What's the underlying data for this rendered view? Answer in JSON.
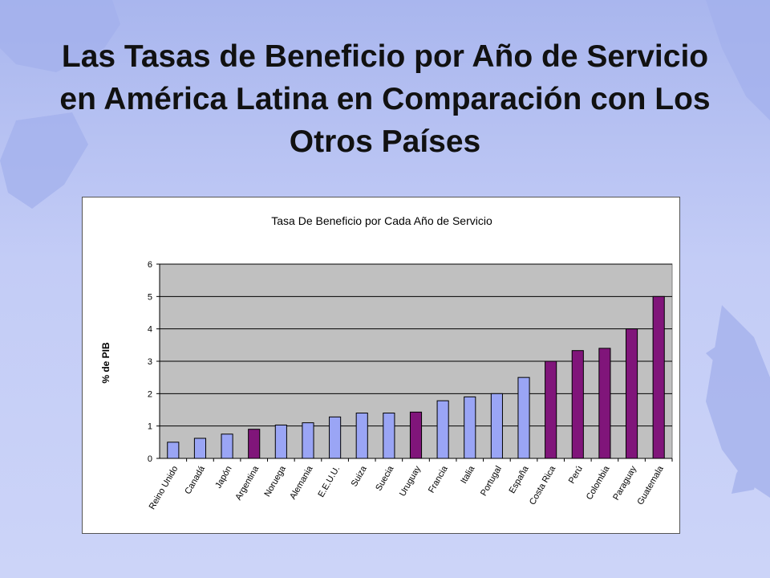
{
  "slide": {
    "title": "Las Tasas de Beneficio por Año de Servicio en América Latina en Comparación con Los Otros Países"
  },
  "colors": {
    "bar_other": "#9aa5f5",
    "bar_latam": "#80157a",
    "plot_bg": "#c0c0c0",
    "background": "#b9c4f3"
  },
  "chart_data": {
    "type": "bar",
    "title": "Tasa De Beneficio por Cada Año de Servicio",
    "xlabel": "",
    "ylabel": "% de PIB",
    "ylim": [
      0,
      6
    ],
    "yticks": [
      0,
      1,
      2,
      3,
      4,
      5,
      6
    ],
    "grid": true,
    "legend": "none",
    "categories": [
      "Reino Unido",
      "Canadá",
      "Japón",
      "Argentina",
      "Noruega",
      "Alemania",
      "E.E.U.U.",
      "Suiza",
      "Suecia",
      "Uruguay",
      "Francia",
      "Italia",
      "Portugal",
      "España",
      "Costa Rica",
      "Perú",
      "Colombia",
      "Paraguay",
      "Guatemala"
    ],
    "values": [
      0.5,
      0.62,
      0.75,
      0.9,
      1.03,
      1.1,
      1.28,
      1.4,
      1.4,
      1.43,
      1.78,
      1.9,
      2.0,
      2.5,
      3.0,
      3.33,
      3.4,
      4.0,
      5.0
    ],
    "latin_america": [
      false,
      false,
      false,
      true,
      false,
      false,
      false,
      false,
      false,
      true,
      false,
      false,
      false,
      false,
      true,
      true,
      true,
      true,
      true
    ]
  }
}
